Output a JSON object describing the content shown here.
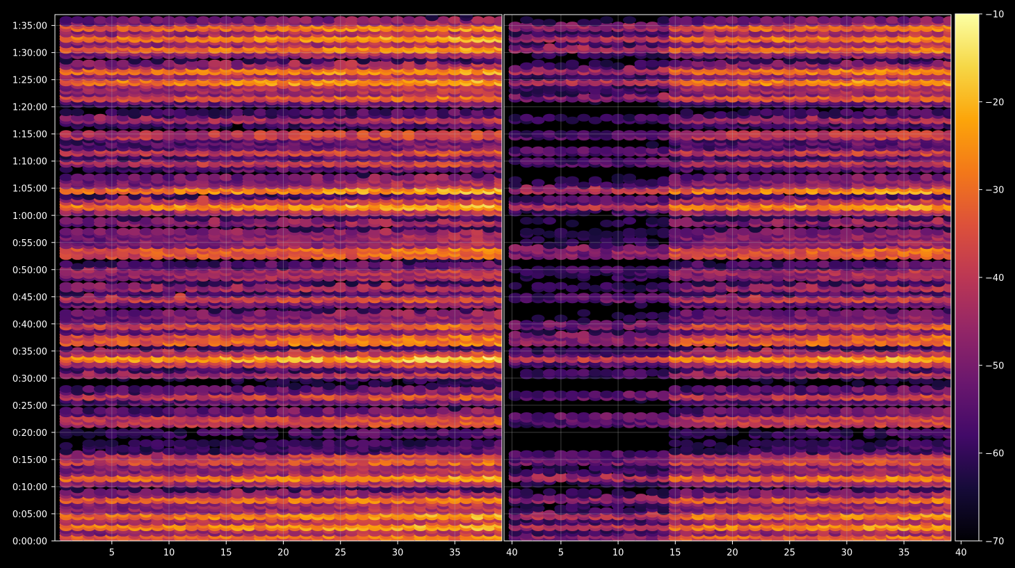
{
  "chart_data": {
    "type": "heatmap",
    "title": "",
    "theme": {
      "background": "#000000",
      "axis_color": "#ffffff",
      "grid_color": "#b0b0b0",
      "colormap": "inferno"
    },
    "panels": [
      {
        "name": "",
        "x_ticks": [
          5,
          10,
          15,
          20,
          25,
          30,
          35,
          40
        ],
        "xlim": [
          1,
          40
        ],
        "y_ticks": [
          "0:00:00",
          "0:05:00",
          "0:10:00",
          "0:15:00",
          "0:20:00",
          "0:25:00",
          "0:30:00",
          "0:35:00",
          "0:40:00",
          "0:45:00",
          "0:50:00",
          "0:55:00",
          "1:00:00",
          "1:05:00",
          "1:10:00",
          "1:15:00",
          "1:20:00",
          "1:25:00",
          "1:30:00",
          "1:35:00"
        ],
        "ylim_seconds": [
          0,
          5820
        ],
        "grid": true
      },
      {
        "name": "",
        "x_ticks": [
          5,
          10,
          15,
          20,
          25,
          30,
          35,
          40
        ],
        "xlim": [
          1,
          40
        ],
        "grid": true
      }
    ],
    "colorbar": {
      "ticks": [
        -10,
        -20,
        -30,
        -40,
        -50,
        -60,
        -70
      ],
      "tick_labels": [
        "−10",
        "−20",
        "−30",
        "−40",
        "−50",
        "−60",
        "−70"
      ],
      "range": [
        -70,
        -10
      ]
    },
    "value_range": [
      -70,
      -10
    ],
    "time_step_seconds": 60,
    "x_step": 1,
    "bright_rows_minutes": [
      1,
      3,
      5,
      8,
      12,
      15,
      16,
      22,
      23,
      27,
      34,
      37,
      38,
      40,
      45,
      47,
      49,
      50,
      53,
      54,
      62,
      65,
      70,
      72,
      75,
      78,
      82,
      85,
      87,
      91,
      93,
      95
    ],
    "dim_rows_minutes": [
      10,
      19,
      21,
      25,
      29,
      30,
      32,
      36,
      43,
      52,
      58,
      60,
      64,
      68,
      76,
      80,
      89,
      97
    ]
  }
}
